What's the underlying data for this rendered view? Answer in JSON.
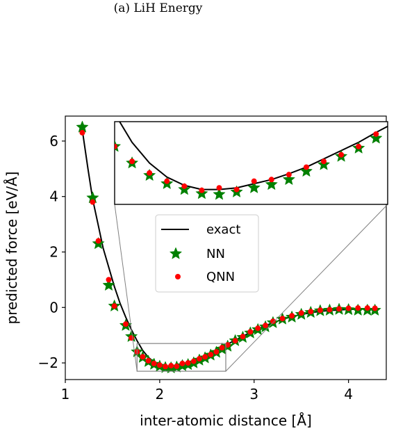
{
  "caption": "(a) LiH Energy",
  "chart_data": {
    "type": "line",
    "xlabel": "inter-atomic distance [Å]",
    "ylabel": "predicted force [eV/Å]",
    "xlim": [
      1.0,
      4.4
    ],
    "ylim": [
      -2.6,
      6.9
    ],
    "xticks": [
      1,
      2,
      3,
      4
    ],
    "yticks": [
      -2,
      0,
      2,
      4,
      6
    ],
    "xtick_labels": [
      "1",
      "2",
      "3",
      "4"
    ],
    "ytick_labels": [
      "−2",
      "0",
      "2",
      "4",
      "6"
    ],
    "legend_position": "center",
    "colors": {
      "exact": "#000000",
      "NN": "#008000",
      "QNN": "#ff0000",
      "box": "#808080"
    },
    "series": [
      {
        "name": "exact",
        "marker": "line",
        "x": [
          1.18,
          1.24,
          1.29,
          1.35,
          1.4,
          1.46,
          1.52,
          1.58,
          1.64,
          1.7,
          1.76,
          1.82,
          1.88,
          1.94,
          2.0,
          2.06,
          2.12,
          2.18,
          2.24,
          2.3,
          2.36,
          2.42,
          2.48,
          2.54,
          2.6,
          2.66,
          2.72,
          2.8,
          2.88,
          2.96,
          3.04,
          3.12,
          3.2,
          3.3,
          3.4,
          3.5,
          3.6,
          3.7,
          3.8,
          3.9,
          4.0,
          4.1,
          4.2,
          4.28
        ],
        "y": [
          6.4,
          5.0,
          3.9,
          2.95,
          2.15,
          1.45,
          0.75,
          0.15,
          -0.35,
          -0.8,
          -1.2,
          -1.55,
          -1.8,
          -1.97,
          -2.07,
          -2.12,
          -2.12,
          -2.1,
          -2.05,
          -2.0,
          -1.93,
          -1.85,
          -1.75,
          -1.65,
          -1.55,
          -1.43,
          -1.32,
          -1.18,
          -1.04,
          -0.9,
          -0.78,
          -0.66,
          -0.55,
          -0.43,
          -0.33,
          -0.25,
          -0.19,
          -0.14,
          -0.11,
          -0.09,
          -0.07,
          -0.06,
          -0.05,
          -0.05
        ]
      },
      {
        "name": "NN",
        "marker": "star",
        "x": [
          1.18,
          1.29,
          1.35,
          1.46,
          1.52,
          1.64,
          1.7,
          1.76,
          1.82,
          1.88,
          1.94,
          2.0,
          2.06,
          2.12,
          2.18,
          2.24,
          2.3,
          2.36,
          2.42,
          2.48,
          2.54,
          2.6,
          2.66,
          2.72,
          2.8,
          2.88,
          2.96,
          3.04,
          3.12,
          3.2,
          3.3,
          3.4,
          3.5,
          3.6,
          3.7,
          3.8,
          3.9,
          4.0,
          4.1,
          4.2,
          4.28
        ],
        "y": [
          6.5,
          3.95,
          2.3,
          0.8,
          0.05,
          -0.65,
          -1.05,
          -1.6,
          -1.8,
          -1.95,
          -2.05,
          -2.12,
          -2.17,
          -2.18,
          -2.15,
          -2.1,
          -2.06,
          -2.0,
          -1.9,
          -1.82,
          -1.72,
          -1.62,
          -1.5,
          -1.4,
          -1.2,
          -1.08,
          -0.92,
          -0.8,
          -0.7,
          -0.55,
          -0.42,
          -0.35,
          -0.25,
          -0.18,
          -0.12,
          -0.1,
          -0.07,
          -0.08,
          -0.1,
          -0.1,
          -0.1
        ]
      },
      {
        "name": "QNN",
        "marker": "dot",
        "x": [
          1.18,
          1.29,
          1.35,
          1.46,
          1.52,
          1.64,
          1.7,
          1.76,
          1.82,
          1.88,
          1.94,
          2.0,
          2.06,
          2.12,
          2.18,
          2.24,
          2.3,
          2.36,
          2.42,
          2.48,
          2.54,
          2.6,
          2.66,
          2.72,
          2.8,
          2.88,
          2.96,
          3.04,
          3.12,
          3.2,
          3.3,
          3.4,
          3.5,
          3.6,
          3.7,
          3.8,
          3.9,
          4.0,
          4.1,
          4.2,
          4.28
        ],
        "y": [
          6.3,
          3.8,
          2.4,
          1.0,
          0.05,
          -0.6,
          -1.1,
          -1.6,
          -1.78,
          -1.92,
          -2.02,
          -2.08,
          -2.13,
          -2.1,
          -2.12,
          -2.02,
          -2.0,
          -1.94,
          -1.85,
          -1.78,
          -1.7,
          -1.6,
          -1.45,
          -1.35,
          -1.2,
          -1.05,
          -0.88,
          -0.75,
          -0.65,
          -0.5,
          -0.4,
          -0.3,
          -0.2,
          -0.15,
          -0.1,
          -0.08,
          -0.05,
          -0.03,
          -0.02,
          -0.02,
          -0.03
        ]
      }
    ],
    "zoom": {
      "source_xlim": [
        1.76,
        2.7
      ],
      "source_ylim": [
        -2.3,
        -1.3
      ]
    }
  }
}
